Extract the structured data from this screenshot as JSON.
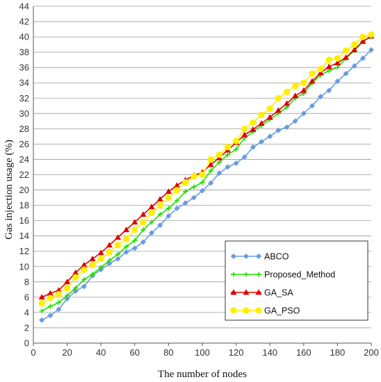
{
  "chart_data": {
    "type": "line",
    "title": "",
    "xlabel": "The number of nodes",
    "ylabel": "Gas injection usage  (%)",
    "xlim": [
      0,
      200
    ],
    "ylim": [
      0,
      44
    ],
    "xticks": [
      0,
      20,
      40,
      60,
      80,
      100,
      120,
      140,
      160,
      180,
      200
    ],
    "yticks": [
      0,
      2,
      4,
      6,
      8,
      10,
      12,
      14,
      16,
      18,
      20,
      22,
      24,
      26,
      28,
      30,
      32,
      34,
      36,
      38,
      40,
      42,
      44
    ],
    "grid": "horizontal",
    "legend_position": "lower-right",
    "x": [
      5,
      10,
      15,
      20,
      25,
      30,
      35,
      40,
      45,
      50,
      55,
      60,
      65,
      70,
      75,
      80,
      85,
      90,
      95,
      100,
      105,
      110,
      115,
      120,
      125,
      130,
      135,
      140,
      145,
      150,
      155,
      160,
      165,
      170,
      175,
      180,
      185,
      190,
      195,
      200
    ],
    "series": [
      {
        "name": "ABCO",
        "color": "#6a9be0",
        "marker": "diamond",
        "values": [
          3.0,
          3.6,
          4.4,
          5.8,
          6.8,
          7.4,
          8.8,
          9.6,
          10.4,
          11.0,
          11.9,
          12.4,
          13.2,
          14.4,
          15.4,
          16.6,
          17.6,
          18.3,
          19.0,
          19.9,
          20.9,
          22.2,
          23.0,
          23.5,
          24.3,
          25.6,
          26.3,
          27.0,
          27.8,
          28.2,
          29.0,
          30.0,
          31.0,
          32.2,
          33.0,
          34.2,
          35.2,
          36.2,
          37.2,
          38.3
        ]
      },
      {
        "name": "Proposed_Method",
        "color": "#22dd00",
        "marker": "plus",
        "values": [
          4.2,
          4.8,
          5.3,
          6.2,
          7.2,
          8.3,
          9.0,
          9.9,
          10.8,
          11.6,
          12.6,
          13.4,
          14.8,
          15.8,
          16.8,
          17.6,
          18.6,
          19.8,
          20.4,
          21.0,
          22.5,
          23.6,
          24.6,
          25.3,
          26.8,
          27.6,
          28.4,
          29.2,
          30.0,
          30.8,
          32.0,
          32.6,
          34.0,
          35.0,
          35.6,
          36.0,
          37.2,
          38.2,
          39.4,
          40.0
        ]
      },
      {
        "name": "GA_SA",
        "color": "#e00000",
        "marker": "triangle",
        "values": [
          6.0,
          6.5,
          6.9,
          8.0,
          9.2,
          10.2,
          11.0,
          11.8,
          12.8,
          13.8,
          14.8,
          15.8,
          16.8,
          17.8,
          18.8,
          19.8,
          20.6,
          21.3,
          21.9,
          22.3,
          23.3,
          24.2,
          25.2,
          26.2,
          27.2,
          27.9,
          28.7,
          29.5,
          30.4,
          31.3,
          32.3,
          33.0,
          34.2,
          35.3,
          36.1,
          36.6,
          37.3,
          38.3,
          39.4,
          40.1
        ]
      },
      {
        "name": "GA_PSO",
        "color": "#ffee00",
        "marker": "circle",
        "values": [
          5.2,
          5.9,
          6.4,
          7.2,
          8.6,
          9.6,
          10.2,
          11.0,
          11.9,
          12.8,
          13.6,
          14.8,
          15.8,
          17.0,
          18.0,
          19.0,
          20.0,
          21.0,
          21.8,
          22.0,
          24.0,
          24.6,
          25.6,
          26.4,
          28.0,
          28.8,
          29.8,
          30.6,
          32.0,
          32.8,
          33.6,
          34.0,
          35.2,
          35.8,
          37.0,
          37.2,
          38.2,
          39.0,
          40.0,
          40.3
        ]
      }
    ]
  }
}
